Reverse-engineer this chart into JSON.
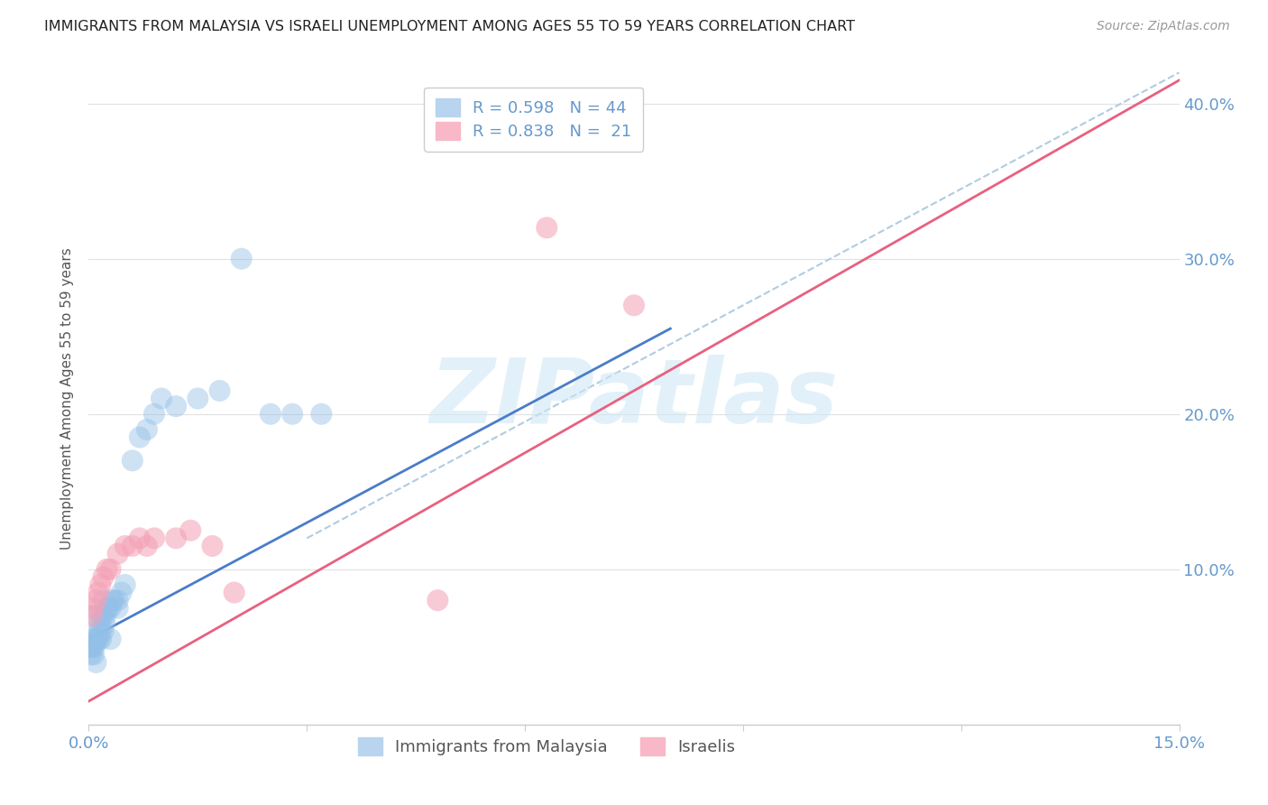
{
  "title": "IMMIGRANTS FROM MALAYSIA VS ISRAELI UNEMPLOYMENT AMONG AGES 55 TO 59 YEARS CORRELATION CHART",
  "source": "Source: ZipAtlas.com",
  "xlabel_ticks": [
    "0.0%",
    "",
    "",
    "",
    "",
    "",
    "15.0%"
  ],
  "ylabel_ticks": [
    "",
    "10.0%",
    "20.0%",
    "30.0%",
    "40.0%"
  ],
  "xlim": [
    0.0,
    0.15
  ],
  "ylim": [
    0.0,
    0.42
  ],
  "legend_label_blue": "Immigrants from Malaysia",
  "legend_label_pink": "Israelis",
  "watermark": "ZIPatlas",
  "blue_scatter_x": [
    0.0002,
    0.0003,
    0.0004,
    0.0005,
    0.0006,
    0.0007,
    0.0008,
    0.001,
    0.001,
    0.001,
    0.0012,
    0.0013,
    0.0014,
    0.0015,
    0.0016,
    0.0017,
    0.0018,
    0.002,
    0.002,
    0.002,
    0.0022,
    0.0023,
    0.0025,
    0.0027,
    0.003,
    0.003,
    0.0032,
    0.0035,
    0.004,
    0.004,
    0.0045,
    0.005,
    0.006,
    0.007,
    0.008,
    0.009,
    0.01,
    0.012,
    0.015,
    0.018,
    0.021,
    0.025,
    0.028,
    0.032
  ],
  "blue_scatter_y": [
    0.05,
    0.045,
    0.05,
    0.055,
    0.05,
    0.045,
    0.05,
    0.04,
    0.055,
    0.07,
    0.055,
    0.06,
    0.055,
    0.065,
    0.06,
    0.055,
    0.07,
    0.06,
    0.07,
    0.08,
    0.065,
    0.07,
    0.075,
    0.075,
    0.055,
    0.075,
    0.08,
    0.08,
    0.075,
    0.08,
    0.085,
    0.09,
    0.17,
    0.185,
    0.19,
    0.2,
    0.21,
    0.205,
    0.21,
    0.215,
    0.3,
    0.2,
    0.2,
    0.2
  ],
  "pink_scatter_x": [
    0.0004,
    0.0006,
    0.001,
    0.0013,
    0.0016,
    0.002,
    0.0025,
    0.003,
    0.004,
    0.005,
    0.006,
    0.007,
    0.008,
    0.009,
    0.012,
    0.014,
    0.017,
    0.02,
    0.048,
    0.063,
    0.075
  ],
  "pink_scatter_y": [
    0.07,
    0.075,
    0.08,
    0.085,
    0.09,
    0.095,
    0.1,
    0.1,
    0.11,
    0.115,
    0.115,
    0.12,
    0.115,
    0.12,
    0.12,
    0.125,
    0.115,
    0.085,
    0.08,
    0.32,
    0.27
  ],
  "blue_line_x": [
    0.0,
    0.08
  ],
  "blue_line_y": [
    0.055,
    0.255
  ],
  "pink_line_x": [
    0.0,
    0.15
  ],
  "pink_line_y": [
    0.015,
    0.415
  ],
  "dashed_line_x": [
    0.03,
    0.15
  ],
  "dashed_line_y": [
    0.12,
    0.42
  ],
  "title_color": "#222222",
  "axis_color": "#6699cc",
  "grid_color": "#e0e0e0",
  "blue_scatter_color": "#93c0e8",
  "pink_scatter_color": "#f4a0b5",
  "blue_line_color": "#4a7cc9",
  "pink_line_color": "#e86080",
  "dashed_line_color": "#b0cce0"
}
